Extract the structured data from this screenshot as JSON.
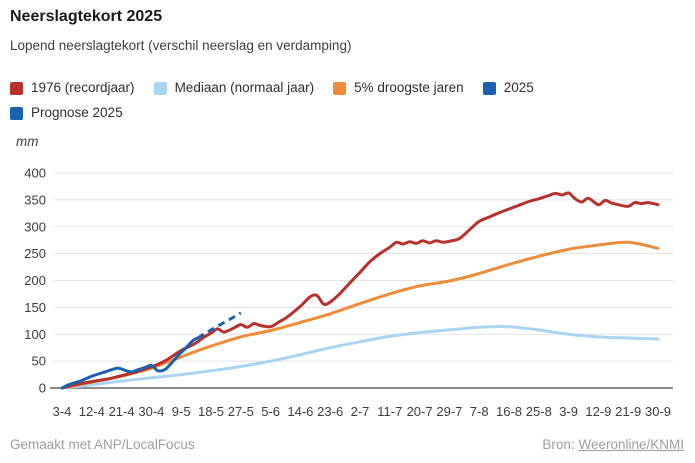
{
  "chart_data": {
    "type": "line",
    "title": "Neerslagtekort 2025",
    "subtitle": "Lopend neerslagtekort (verschil neerslag en verdamping)",
    "unit_label": "mm",
    "ylim": [
      0,
      400
    ],
    "y_ticks": [
      0,
      50,
      100,
      150,
      200,
      250,
      300,
      350,
      400
    ],
    "x_tick_labels": [
      "3-4",
      "12-4",
      "21-4",
      "30-4",
      "9-5",
      "18-5",
      "27-5",
      "5-6",
      "14-6",
      "23-6",
      "2-7",
      "11-7",
      "20-7",
      "29-7",
      "7-8",
      "16-8",
      "25-8",
      "3-9",
      "12-9",
      "21-9",
      "30-9"
    ],
    "x_span_days": 180,
    "grid": true,
    "legend_position": "top",
    "series": [
      {
        "name": "Mediaan (normaal jaar)",
        "color": "#a9d5f1",
        "dashed": false,
        "legend_row": 0,
        "legend_order": 1,
        "points": [
          [
            0,
            0
          ],
          [
            9,
            6
          ],
          [
            18,
            13
          ],
          [
            27,
            19
          ],
          [
            36,
            25
          ],
          [
            45,
            32
          ],
          [
            54,
            40
          ],
          [
            63,
            50
          ],
          [
            72,
            62
          ],
          [
            81,
            75
          ],
          [
            90,
            86
          ],
          [
            99,
            96
          ],
          [
            108,
            103
          ],
          [
            117,
            108
          ],
          [
            126,
            113
          ],
          [
            135,
            114
          ],
          [
            144,
            108
          ],
          [
            153,
            100
          ],
          [
            162,
            95
          ],
          [
            171,
            93
          ],
          [
            180,
            91
          ]
        ]
      },
      {
        "name": "5% droogste jaren",
        "color": "#ee8c3a",
        "dashed": false,
        "legend_row": 0,
        "legend_order": 2,
        "points": [
          [
            0,
            0
          ],
          [
            9,
            11
          ],
          [
            18,
            22
          ],
          [
            27,
            37
          ],
          [
            36,
            58
          ],
          [
            45,
            78
          ],
          [
            54,
            95
          ],
          [
            63,
            107
          ],
          [
            72,
            122
          ],
          [
            81,
            138
          ],
          [
            90,
            157
          ],
          [
            99,
            175
          ],
          [
            108,
            190
          ],
          [
            117,
            199
          ],
          [
            126,
            213
          ],
          [
            135,
            230
          ],
          [
            144,
            245
          ],
          [
            153,
            258
          ],
          [
            162,
            266
          ],
          [
            171,
            271
          ],
          [
            180,
            260
          ]
        ]
      },
      {
        "name": "1976 (recordjaar)",
        "color": "#b8312b",
        "dashed": false,
        "legend_row": 0,
        "legend_order": 0,
        "points": [
          [
            0,
            0
          ],
          [
            4,
            6
          ],
          [
            9,
            12
          ],
          [
            14,
            17
          ],
          [
            18,
            23
          ],
          [
            23,
            31
          ],
          [
            27,
            39
          ],
          [
            31,
            50
          ],
          [
            34,
            62
          ],
          [
            36,
            70
          ],
          [
            40,
            82
          ],
          [
            43,
            95
          ],
          [
            45,
            102
          ],
          [
            47,
            110
          ],
          [
            49,
            104
          ],
          [
            52,
            112
          ],
          [
            54,
            118
          ],
          [
            56,
            113
          ],
          [
            58,
            120
          ],
          [
            60,
            116
          ],
          [
            63,
            114
          ],
          [
            65,
            121
          ],
          [
            68,
            132
          ],
          [
            72,
            152
          ],
          [
            75,
            170
          ],
          [
            77,
            172
          ],
          [
            79,
            156
          ],
          [
            81,
            160
          ],
          [
            84,
            176
          ],
          [
            87,
            196
          ],
          [
            90,
            215
          ],
          [
            93,
            235
          ],
          [
            96,
            250
          ],
          [
            99,
            262
          ],
          [
            101,
            271
          ],
          [
            103,
            268
          ],
          [
            105,
            272
          ],
          [
            107,
            269
          ],
          [
            109,
            274
          ],
          [
            111,
            270
          ],
          [
            113,
            274
          ],
          [
            115,
            271
          ],
          [
            117,
            273
          ],
          [
            120,
            278
          ],
          [
            123,
            294
          ],
          [
            126,
            310
          ],
          [
            129,
            318
          ],
          [
            132,
            326
          ],
          [
            135,
            333
          ],
          [
            138,
            340
          ],
          [
            141,
            347
          ],
          [
            144,
            352
          ],
          [
            147,
            358
          ],
          [
            149,
            362
          ],
          [
            151,
            359
          ],
          [
            153,
            363
          ],
          [
            155,
            352
          ],
          [
            157,
            346
          ],
          [
            159,
            353
          ],
          [
            162,
            341
          ],
          [
            164,
            349
          ],
          [
            166,
            344
          ],
          [
            168,
            341
          ],
          [
            171,
            338
          ],
          [
            173,
            345
          ],
          [
            175,
            343
          ],
          [
            177,
            345
          ],
          [
            180,
            341
          ]
        ]
      },
      {
        "name": "2025",
        "color": "#1a62b0",
        "dashed": false,
        "legend_row": 0,
        "legend_order": 3,
        "points": [
          [
            0,
            0
          ],
          [
            2,
            6
          ],
          [
            4,
            10
          ],
          [
            6,
            14
          ],
          [
            9,
            22
          ],
          [
            11,
            26
          ],
          [
            13,
            30
          ],
          [
            15,
            34
          ],
          [
            17,
            37
          ],
          [
            19,
            33
          ],
          [
            21,
            30
          ],
          [
            23,
            34
          ],
          [
            25,
            38
          ],
          [
            27,
            42
          ],
          [
            29,
            32
          ],
          [
            31,
            34
          ],
          [
            33,
            46
          ],
          [
            35,
            60
          ],
          [
            37,
            72
          ],
          [
            39,
            85
          ],
          [
            40,
            90
          ],
          [
            41,
            93
          ]
        ]
      },
      {
        "name": "Prognose 2025",
        "color": "#1a62b0",
        "dashed": true,
        "legend_row": 1,
        "legend_order": 0,
        "points": [
          [
            41,
            93
          ],
          [
            43,
            101
          ],
          [
            45,
            108
          ],
          [
            47,
            115
          ],
          [
            49,
            122
          ],
          [
            51,
            129
          ],
          [
            53,
            136
          ],
          [
            54,
            140
          ]
        ]
      }
    ]
  },
  "footer": {
    "credit": "Gemaakt met ANP/LocalFocus",
    "source_prefix": "Bron:",
    "source_link": "Weeronline/KNMI"
  },
  "colors": {
    "background": "#ffffff",
    "gridline": "#e3e3e3",
    "axis_line": "#8c8c8c",
    "tick_text": "#3d3d3d",
    "footer_text": "#9d9d9d"
  }
}
